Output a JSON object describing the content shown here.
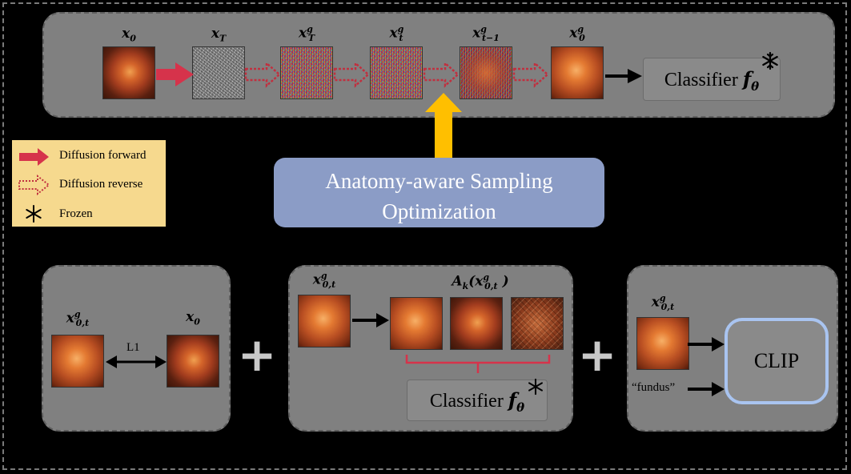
{
  "top_row": {
    "labels": [
      {
        "base": "x",
        "sup": "",
        "sub": "0"
      },
      {
        "base": "x",
        "sup": "",
        "sub": "T"
      },
      {
        "base": "x",
        "sup": "g",
        "sub": "T"
      },
      {
        "base": "x",
        "sup": "g",
        "sub": "t"
      },
      {
        "base": "x",
        "sup": "g",
        "sub": "t−1"
      },
      {
        "base": "x",
        "sup": "g",
        "sub": "0"
      }
    ],
    "classifier": {
      "text": "Classifier ",
      "symbol": "f",
      "sub": "θ"
    }
  },
  "legend": {
    "items": [
      {
        "label": "Diffusion forward",
        "icon": "solid-red-arrow-icon"
      },
      {
        "label": "Diffusion reverse",
        "icon": "dotted-red-arrow-icon"
      },
      {
        "label": "Frozen",
        "icon": "snowflake-icon"
      }
    ]
  },
  "optimization": {
    "line1": "Anatomy-aware Sampling",
    "line2": "Optimization"
  },
  "panel_l1": {
    "left_label": {
      "base": "x",
      "sup": "g",
      "sub": "0,t"
    },
    "right_label": {
      "base": "x",
      "sup": "",
      "sub": "0"
    },
    "link_label": "L1"
  },
  "panel_aug": {
    "input_label": {
      "base": "x",
      "sup": "g",
      "sub": "0,t"
    },
    "aug_label": {
      "func": "A",
      "func_sub": "k",
      "open": "(",
      "base": "x",
      "sup": "g",
      "sub": "0,t",
      "close": " )"
    },
    "classifier": {
      "text": "Classifier ",
      "symbol": "f",
      "sub": "θ"
    }
  },
  "panel_clip": {
    "input_label": {
      "base": "x",
      "sup": "g",
      "sub": "0,t"
    },
    "text_prompt": "“fundus”",
    "model": "CLIP"
  },
  "plus_symbols": [
    "+",
    "+"
  ],
  "colors": {
    "forward_arrow": "#d6334b",
    "reverse_arrow": "#c0303f",
    "guidance_arrow": "#ffbf00",
    "legend_bg": "#f6d98e",
    "optimization_bg": "#8b9cc6",
    "clip_border": "#a9c4f0",
    "bracket": "#d6334b"
  }
}
